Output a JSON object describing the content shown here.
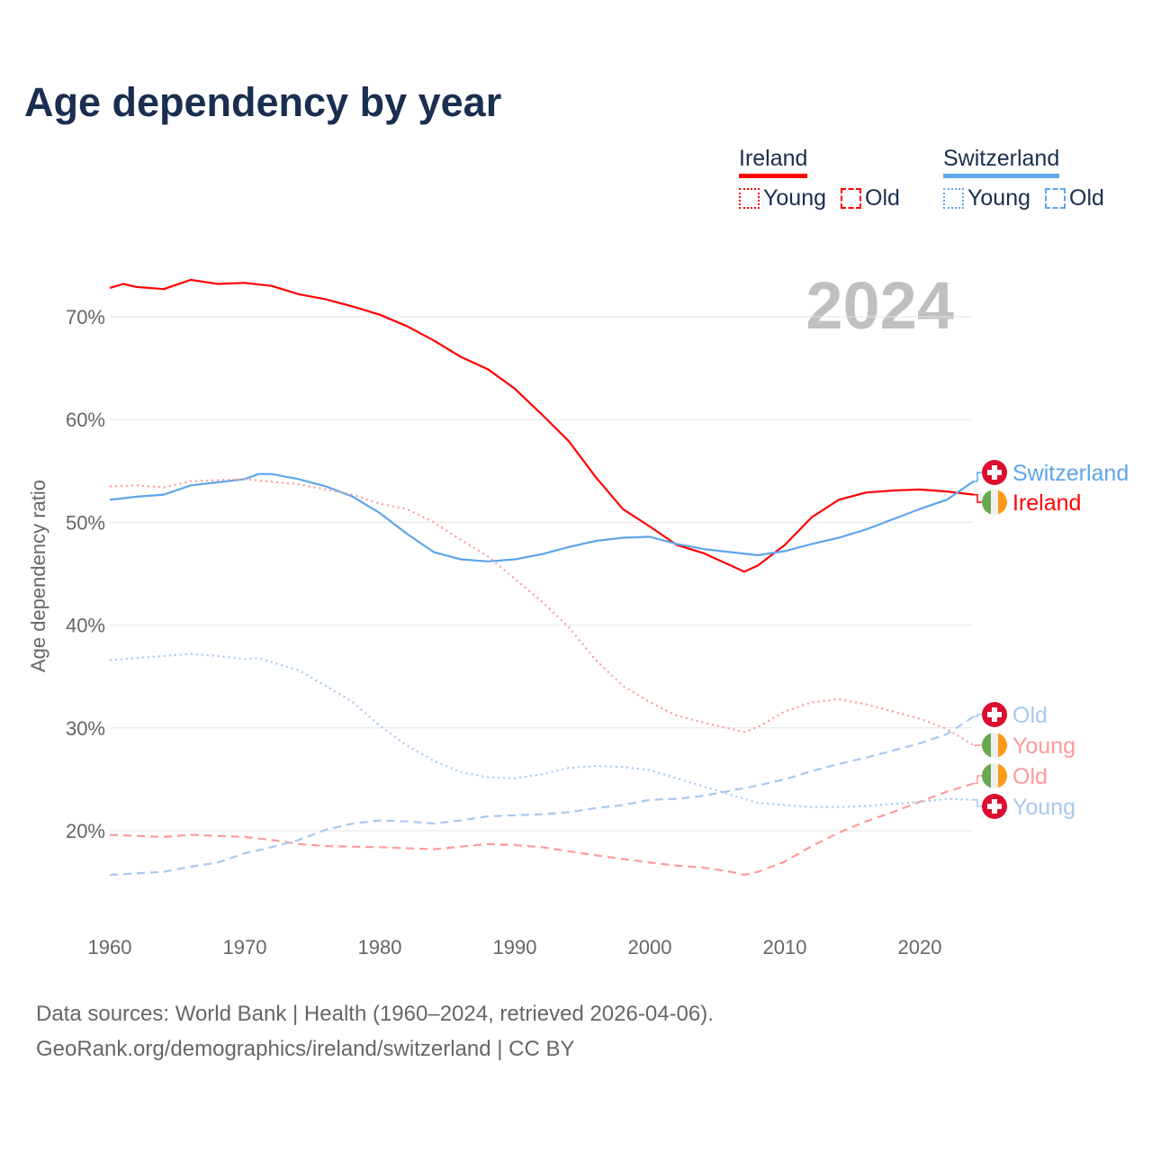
{
  "title": "Age dependency by year",
  "legend": {
    "groups": [
      {
        "name": "Ireland",
        "color": "#ff0000",
        "light": "#ff9a9a",
        "items": [
          "Young",
          "Old"
        ]
      },
      {
        "name": "Switzerland",
        "color": "#5ea5ea",
        "light": "#a6c9f0",
        "items": [
          "Young",
          "Old"
        ]
      }
    ]
  },
  "year_watermark": "2024",
  "footer": {
    "line1": "Data sources: World Bank | Health (1960–2024, retrieved 2026-04-06).",
    "line2": "GeoRank.org/demographics/ireland/switzerland | CC BY"
  },
  "chart_data": {
    "type": "line",
    "title": "Age dependency by year",
    "xlabel": "",
    "ylabel": "Age dependency ratio",
    "xlim": [
      1960,
      2024
    ],
    "ylim": [
      12,
      76
    ],
    "x_ticks": [
      1960,
      1970,
      1980,
      1990,
      2000,
      2010,
      2020
    ],
    "y_ticks": [
      20,
      30,
      40,
      50,
      60,
      70
    ],
    "y_tick_labels": [
      "20%",
      "30%",
      "40%",
      "50%",
      "60%",
      "70%"
    ],
    "grid": true,
    "series": [
      {
        "name": "Ireland",
        "country": "Ireland",
        "kind": "total",
        "color": "#ff0000",
        "style": "solid",
        "end_label": "Ireland",
        "flag": "ireland",
        "points": [
          [
            1960,
            72.8
          ],
          [
            1961,
            73.2
          ],
          [
            1962,
            72.9
          ],
          [
            1964,
            72.7
          ],
          [
            1966,
            73.6
          ],
          [
            1968,
            73.2
          ],
          [
            1970,
            73.3
          ],
          [
            1972,
            73.0
          ],
          [
            1974,
            72.2
          ],
          [
            1976,
            71.7
          ],
          [
            1978,
            71.0
          ],
          [
            1980,
            70.2
          ],
          [
            1982,
            69.1
          ],
          [
            1984,
            67.7
          ],
          [
            1986,
            66.1
          ],
          [
            1988,
            64.9
          ],
          [
            1990,
            63.0
          ],
          [
            1992,
            60.5
          ],
          [
            1994,
            57.9
          ],
          [
            1996,
            54.4
          ],
          [
            1998,
            51.3
          ],
          [
            2000,
            49.6
          ],
          [
            2002,
            47.8
          ],
          [
            2004,
            47.0
          ],
          [
            2006,
            45.8
          ],
          [
            2007,
            45.2
          ],
          [
            2008,
            45.8
          ],
          [
            2010,
            47.8
          ],
          [
            2012,
            50.5
          ],
          [
            2014,
            52.2
          ],
          [
            2016,
            52.9
          ],
          [
            2018,
            53.1
          ],
          [
            2020,
            53.2
          ],
          [
            2022,
            53.0
          ],
          [
            2024,
            52.7
          ]
        ]
      },
      {
        "name": "Switzerland",
        "country": "Switzerland",
        "kind": "total",
        "color": "#5ea5ea",
        "style": "solid",
        "end_label": "Switzerland",
        "flag": "switzerland",
        "points": [
          [
            1960,
            52.2
          ],
          [
            1962,
            52.5
          ],
          [
            1964,
            52.7
          ],
          [
            1966,
            53.6
          ],
          [
            1968,
            53.9
          ],
          [
            1970,
            54.2
          ],
          [
            1971,
            54.7
          ],
          [
            1972,
            54.7
          ],
          [
            1974,
            54.2
          ],
          [
            1976,
            53.5
          ],
          [
            1978,
            52.5
          ],
          [
            1980,
            50.9
          ],
          [
            1982,
            48.9
          ],
          [
            1984,
            47.1
          ],
          [
            1986,
            46.4
          ],
          [
            1988,
            46.2
          ],
          [
            1990,
            46.4
          ],
          [
            1992,
            46.9
          ],
          [
            1994,
            47.6
          ],
          [
            1996,
            48.2
          ],
          [
            1998,
            48.5
          ],
          [
            2000,
            48.6
          ],
          [
            2002,
            47.9
          ],
          [
            2004,
            47.4
          ],
          [
            2006,
            47.1
          ],
          [
            2008,
            46.8
          ],
          [
            2010,
            47.2
          ],
          [
            2012,
            47.9
          ],
          [
            2014,
            48.5
          ],
          [
            2016,
            49.3
          ],
          [
            2018,
            50.3
          ],
          [
            2020,
            51.3
          ],
          [
            2022,
            52.2
          ],
          [
            2024,
            54.0
          ]
        ]
      },
      {
        "name": "Ireland Young",
        "country": "Ireland",
        "kind": "young",
        "color": "#ff9a9a",
        "style": "dotted",
        "end_label": "Young",
        "flag": "ireland",
        "points": [
          [
            1960,
            53.5
          ],
          [
            1962,
            53.6
          ],
          [
            1964,
            53.4
          ],
          [
            1966,
            54.0
          ],
          [
            1970,
            54.2
          ],
          [
            1974,
            53.7
          ],
          [
            1978,
            52.7
          ],
          [
            1980,
            51.8
          ],
          [
            1982,
            51.3
          ],
          [
            1984,
            50.0
          ],
          [
            1986,
            48.3
          ],
          [
            1988,
            46.7
          ],
          [
            1990,
            44.5
          ],
          [
            1992,
            42.3
          ],
          [
            1994,
            39.8
          ],
          [
            1996,
            36.6
          ],
          [
            1998,
            34.1
          ],
          [
            2000,
            32.5
          ],
          [
            2002,
            31.2
          ],
          [
            2004,
            30.5
          ],
          [
            2006,
            29.9
          ],
          [
            2007,
            29.6
          ],
          [
            2008,
            30.1
          ],
          [
            2010,
            31.6
          ],
          [
            2012,
            32.5
          ],
          [
            2014,
            32.8
          ],
          [
            2016,
            32.3
          ],
          [
            2018,
            31.6
          ],
          [
            2020,
            30.9
          ],
          [
            2022,
            29.9
          ],
          [
            2024,
            28.3
          ]
        ]
      },
      {
        "name": "Ireland Old",
        "country": "Ireland",
        "kind": "old",
        "color": "#ff9a9a",
        "style": "dashed",
        "end_label": "Old",
        "flag": "ireland",
        "points": [
          [
            1960,
            19.6
          ],
          [
            1964,
            19.4
          ],
          [
            1966,
            19.6
          ],
          [
            1970,
            19.4
          ],
          [
            1972,
            19.1
          ],
          [
            1974,
            18.7
          ],
          [
            1976,
            18.5
          ],
          [
            1980,
            18.4
          ],
          [
            1984,
            18.2
          ],
          [
            1988,
            18.7
          ],
          [
            1990,
            18.6
          ],
          [
            1992,
            18.4
          ],
          [
            1996,
            17.6
          ],
          [
            2000,
            16.9
          ],
          [
            2002,
            16.6
          ],
          [
            2004,
            16.4
          ],
          [
            2006,
            16.0
          ],
          [
            2007,
            15.7
          ],
          [
            2008,
            16.0
          ],
          [
            2010,
            17.0
          ],
          [
            2012,
            18.5
          ],
          [
            2014,
            19.8
          ],
          [
            2016,
            20.9
          ],
          [
            2018,
            21.8
          ],
          [
            2020,
            22.8
          ],
          [
            2022,
            23.8
          ],
          [
            2024,
            24.6
          ]
        ]
      },
      {
        "name": "Switzerland Young",
        "country": "Switzerland",
        "kind": "young",
        "color": "#a6c9f0",
        "style": "dotted",
        "end_label": "Young",
        "flag": "switzerland",
        "points": [
          [
            1960,
            36.6
          ],
          [
            1962,
            36.8
          ],
          [
            1966,
            37.2
          ],
          [
            1968,
            37.0
          ],
          [
            1970,
            36.7
          ],
          [
            1971,
            36.8
          ],
          [
            1974,
            35.6
          ],
          [
            1976,
            34.1
          ],
          [
            1978,
            32.5
          ],
          [
            1980,
            30.2
          ],
          [
            1982,
            28.3
          ],
          [
            1984,
            26.8
          ],
          [
            1986,
            25.7
          ],
          [
            1988,
            25.2
          ],
          [
            1990,
            25.1
          ],
          [
            1992,
            25.5
          ],
          [
            1994,
            26.1
          ],
          [
            1996,
            26.3
          ],
          [
            1998,
            26.2
          ],
          [
            2000,
            25.9
          ],
          [
            2002,
            25.1
          ],
          [
            2004,
            24.3
          ],
          [
            2006,
            23.5
          ],
          [
            2008,
            22.7
          ],
          [
            2010,
            22.5
          ],
          [
            2012,
            22.3
          ],
          [
            2014,
            22.3
          ],
          [
            2016,
            22.4
          ],
          [
            2018,
            22.6
          ],
          [
            2020,
            22.8
          ],
          [
            2022,
            23.1
          ],
          [
            2024,
            23.0
          ]
        ]
      },
      {
        "name": "Switzerland Old",
        "country": "Switzerland",
        "kind": "old",
        "color": "#a6c9f0",
        "style": "dashed",
        "end_label": "Old",
        "flag": "switzerland",
        "points": [
          [
            1960,
            15.7
          ],
          [
            1964,
            16.0
          ],
          [
            1966,
            16.5
          ],
          [
            1968,
            16.9
          ],
          [
            1970,
            17.8
          ],
          [
            1972,
            18.4
          ],
          [
            1974,
            19.1
          ],
          [
            1976,
            20.1
          ],
          [
            1978,
            20.7
          ],
          [
            1980,
            21.0
          ],
          [
            1982,
            20.9
          ],
          [
            1984,
            20.7
          ],
          [
            1986,
            21.0
          ],
          [
            1988,
            21.4
          ],
          [
            1990,
            21.5
          ],
          [
            1992,
            21.6
          ],
          [
            1994,
            21.8
          ],
          [
            1996,
            22.2
          ],
          [
            1998,
            22.5
          ],
          [
            2000,
            23.0
          ],
          [
            2002,
            23.1
          ],
          [
            2004,
            23.4
          ],
          [
            2006,
            23.9
          ],
          [
            2008,
            24.4
          ],
          [
            2010,
            25.0
          ],
          [
            2012,
            25.8
          ],
          [
            2014,
            26.5
          ],
          [
            2016,
            27.1
          ],
          [
            2018,
            27.8
          ],
          [
            2020,
            28.5
          ],
          [
            2022,
            29.4
          ],
          [
            2024,
            31.1
          ]
        ]
      }
    ]
  }
}
